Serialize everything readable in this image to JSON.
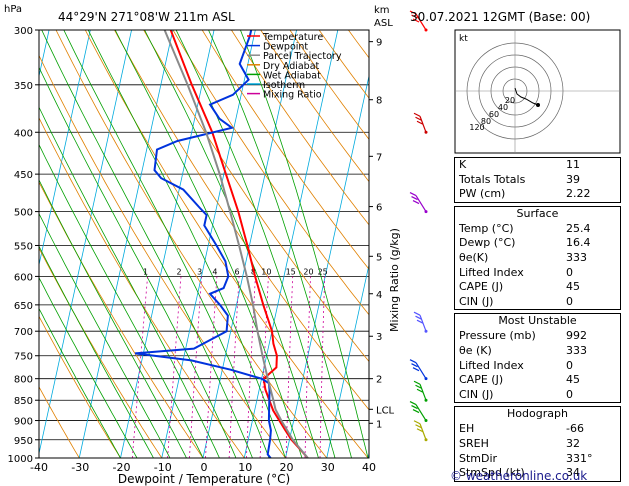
{
  "header": {
    "location": "44°29'N 271°08'W 211m ASL",
    "datetime": "30.07.2021 12GMT (Base: 00)"
  },
  "chart_data": {
    "type": "line",
    "pressure_axis": {
      "unit_label": "hPa",
      "ticks": [
        300,
        350,
        400,
        450,
        500,
        550,
        600,
        650,
        700,
        750,
        800,
        850,
        900,
        950,
        1000
      ]
    },
    "temperature_axis": {
      "ticks": [
        -40,
        -30,
        -20,
        -10,
        0,
        10,
        20,
        30,
        40
      ],
      "xlim": [
        -40,
        40
      ],
      "xlabel": "Dewpoint / Temperature (°C)"
    },
    "height_axis": {
      "unit_label": "km",
      "unit_label2": "ASL",
      "ticks": [
        {
          "label": "9",
          "p": 310
        },
        {
          "label": "8",
          "p": 365
        },
        {
          "label": "7",
          "p": 428
        },
        {
          "label": "6",
          "p": 493
        },
        {
          "label": "5",
          "p": 567
        },
        {
          "label": "4",
          "p": 630
        },
        {
          "label": "3",
          "p": 710
        },
        {
          "label": "2",
          "p": 800
        },
        {
          "label": "LCL",
          "p": 872
        },
        {
          "label": "1",
          "p": 907
        }
      ]
    },
    "mixing_ratio_axis": {
      "ylabel": "Mixing Ratio (g/kg)",
      "labels": [
        1,
        2,
        3,
        4,
        6,
        8,
        10,
        15,
        20,
        25
      ]
    },
    "legend": [
      {
        "name": "Temperature",
        "color": "#ff0000"
      },
      {
        "name": "Dewpoint",
        "color": "#0033dd"
      },
      {
        "name": "Parcel Trajectory",
        "color": "#8a8a8a"
      },
      {
        "name": "Dry Adiabat",
        "color": "#e08000"
      },
      {
        "name": "Wet Adiabat",
        "color": "#00a000"
      },
      {
        "name": "Isotherm",
        "color": "#00aadd"
      },
      {
        "name": "Mixing Ratio",
        "color": "#cc0099"
      }
    ],
    "series": [
      {
        "name": "Temperature",
        "points": [
          [
            1000,
            25.4
          ],
          [
            975,
            23
          ],
          [
            950,
            20.5
          ],
          [
            925,
            18.5
          ],
          [
            900,
            16.5
          ],
          [
            875,
            14.5
          ],
          [
            850,
            13
          ],
          [
            825,
            11.5
          ],
          [
            800,
            10.5
          ],
          [
            775,
            13
          ],
          [
            750,
            12.5
          ],
          [
            725,
            11
          ],
          [
            700,
            10
          ],
          [
            650,
            6.5
          ],
          [
            600,
            3
          ],
          [
            550,
            -0.5
          ],
          [
            500,
            -4.5
          ],
          [
            450,
            -9.5
          ],
          [
            400,
            -15
          ],
          [
            350,
            -22.5
          ],
          [
            300,
            -30.5
          ]
        ]
      },
      {
        "name": "Dewpoint",
        "points": [
          [
            1000,
            16.4
          ],
          [
            990,
            15.5
          ],
          [
            950,
            15.3
          ],
          [
            925,
            15
          ],
          [
            900,
            14
          ],
          [
            850,
            13
          ],
          [
            825,
            12.5
          ],
          [
            810,
            12
          ],
          [
            800,
            10
          ],
          [
            780,
            2
          ],
          [
            760,
            -8
          ],
          [
            745,
            -22
          ],
          [
            735,
            -8
          ],
          [
            700,
            -1
          ],
          [
            670,
            -1.5
          ],
          [
            650,
            -4
          ],
          [
            630,
            -7
          ],
          [
            620,
            -4
          ],
          [
            600,
            -3.5
          ],
          [
            575,
            -5
          ],
          [
            550,
            -8
          ],
          [
            520,
            -12
          ],
          [
            505,
            -12
          ],
          [
            495,
            -14
          ],
          [
            470,
            -19
          ],
          [
            455,
            -25
          ],
          [
            445,
            -27
          ],
          [
            420,
            -27.5
          ],
          [
            410,
            -23
          ],
          [
            395,
            -10.5
          ],
          [
            385,
            -14
          ],
          [
            370,
            -17
          ],
          [
            360,
            -12
          ],
          [
            345,
            -9
          ],
          [
            330,
            -12
          ],
          [
            305,
            -11
          ],
          [
            300,
            -11
          ]
        ]
      },
      {
        "name": "Parcel Trajectory",
        "points": [
          [
            1000,
            25.4
          ],
          [
            950,
            20.8
          ],
          [
            900,
            17
          ],
          [
            872,
            15
          ],
          [
            850,
            14
          ],
          [
            800,
            11.5
          ],
          [
            750,
            9
          ],
          [
            700,
            6.5
          ],
          [
            650,
            4
          ],
          [
            600,
            1
          ],
          [
            550,
            -2.5
          ],
          [
            500,
            -6.5
          ],
          [
            450,
            -11
          ],
          [
            400,
            -16.5
          ],
          [
            350,
            -23.5
          ],
          [
            300,
            -32
          ]
        ]
      }
    ],
    "hodograph": {
      "label": "kt",
      "ring_labels": [
        "20",
        "40",
        "60",
        "80",
        "120"
      ]
    },
    "wind_barb_colors": [
      "#ff0000",
      "#cc0000",
      "#9900cc",
      "#5555ff",
      "#0033dd",
      "#00a000",
      "#00a000",
      "#aaaa00"
    ]
  },
  "indices": {
    "basic": [
      {
        "label": "K",
        "value": "11"
      },
      {
        "label": "Totals Totals",
        "value": "39"
      },
      {
        "label": "PW (cm)",
        "value": "2.22"
      }
    ],
    "surface": {
      "title": "Surface",
      "rows": [
        {
          "label": "Temp (°C)",
          "value": "25.4"
        },
        {
          "label": "Dewp (°C)",
          "value": "16.4"
        },
        {
          "label": "θe(K)",
          "value": "333"
        },
        {
          "label": "Lifted Index",
          "value": "0"
        },
        {
          "label": "CAPE (J)",
          "value": "45"
        },
        {
          "label": "CIN (J)",
          "value": "0"
        }
      ]
    },
    "most_unstable": {
      "title": "Most Unstable",
      "rows": [
        {
          "label": "Pressure (mb)",
          "value": "992"
        },
        {
          "label": "θe (K)",
          "value": "333"
        },
        {
          "label": "Lifted Index",
          "value": "0"
        },
        {
          "label": "CAPE (J)",
          "value": "45"
        },
        {
          "label": "CIN (J)",
          "value": "0"
        }
      ]
    },
    "hodograph": {
      "title": "Hodograph",
      "rows": [
        {
          "label": "EH",
          "value": "-66"
        },
        {
          "label": "SREH",
          "value": "32"
        },
        {
          "label": "StmDir",
          "value": "331°"
        },
        {
          "label": "StmSpd (kt)",
          "value": "34"
        }
      ]
    }
  },
  "footer": {
    "copyright": "© weatheronline.co.uk"
  }
}
